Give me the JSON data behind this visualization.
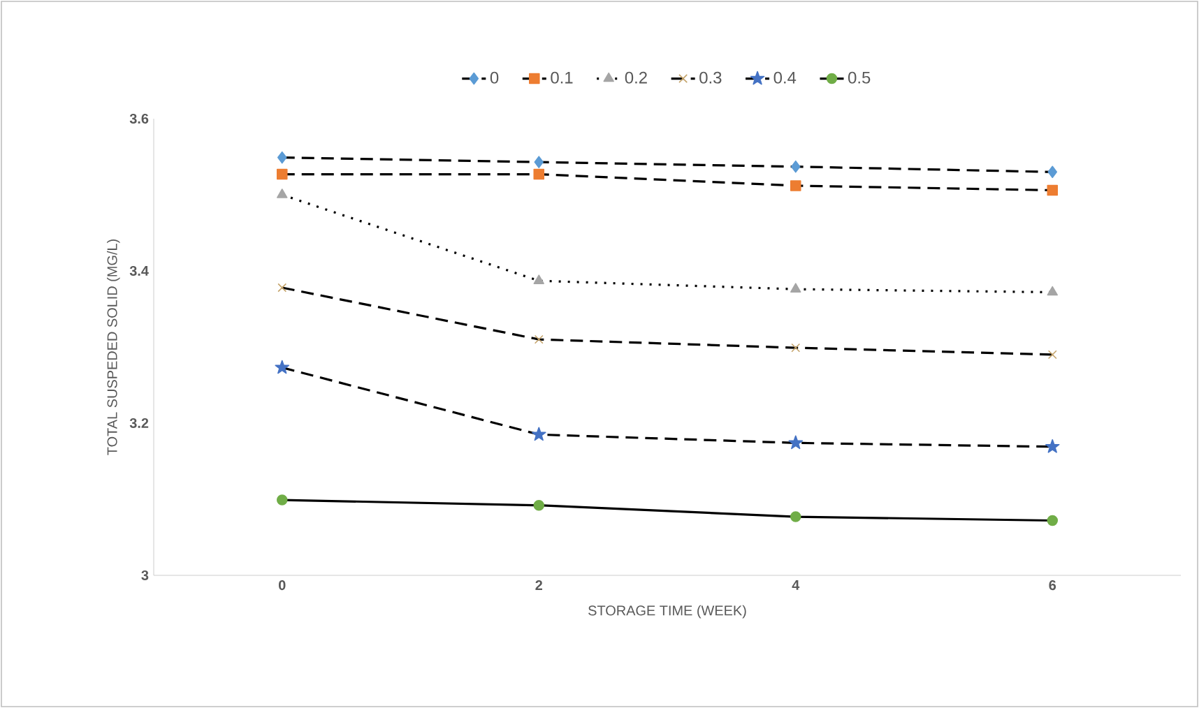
{
  "chart_data": {
    "type": "line",
    "xlabel": "STORAGE TIME (WEEK)",
    "ylabel": "TOTAL SUSPEDED SOLID (MG/L)",
    "categories": [
      "0",
      "2",
      "4",
      "6"
    ],
    "ylim": [
      3,
      3.6
    ],
    "yticks": [
      3,
      3.2,
      3.4,
      3.6
    ],
    "legend": "top",
    "grid": false,
    "series": [
      {
        "name": "0",
        "color": "#5b9bd5",
        "marker": "diamond",
        "line_style": "dashed",
        "values": [
          3.549,
          3.543,
          3.537,
          3.53
        ]
      },
      {
        "name": "0.1",
        "color": "#ed7d31",
        "marker": "square",
        "line_style": "dashed",
        "values": [
          3.527,
          3.527,
          3.512,
          3.506
        ]
      },
      {
        "name": "0.2",
        "color": "#a5a5a5",
        "marker": "triangle",
        "line_style": "dotted",
        "values": [
          3.5,
          3.387,
          3.376,
          3.372
        ]
      },
      {
        "name": "0.3",
        "color": "#c4a36a",
        "marker": "cross",
        "line_style": "dashed",
        "values": [
          3.378,
          3.31,
          3.299,
          3.29
        ]
      },
      {
        "name": "0.4",
        "color": "#4472c4",
        "marker": "star",
        "line_style": "dashed",
        "values": [
          3.273,
          3.185,
          3.174,
          3.169
        ]
      },
      {
        "name": "0.5",
        "color": "#70ad47",
        "marker": "circle",
        "line_style": "solid",
        "values": [
          3.099,
          3.092,
          3.077,
          3.072
        ]
      }
    ]
  }
}
